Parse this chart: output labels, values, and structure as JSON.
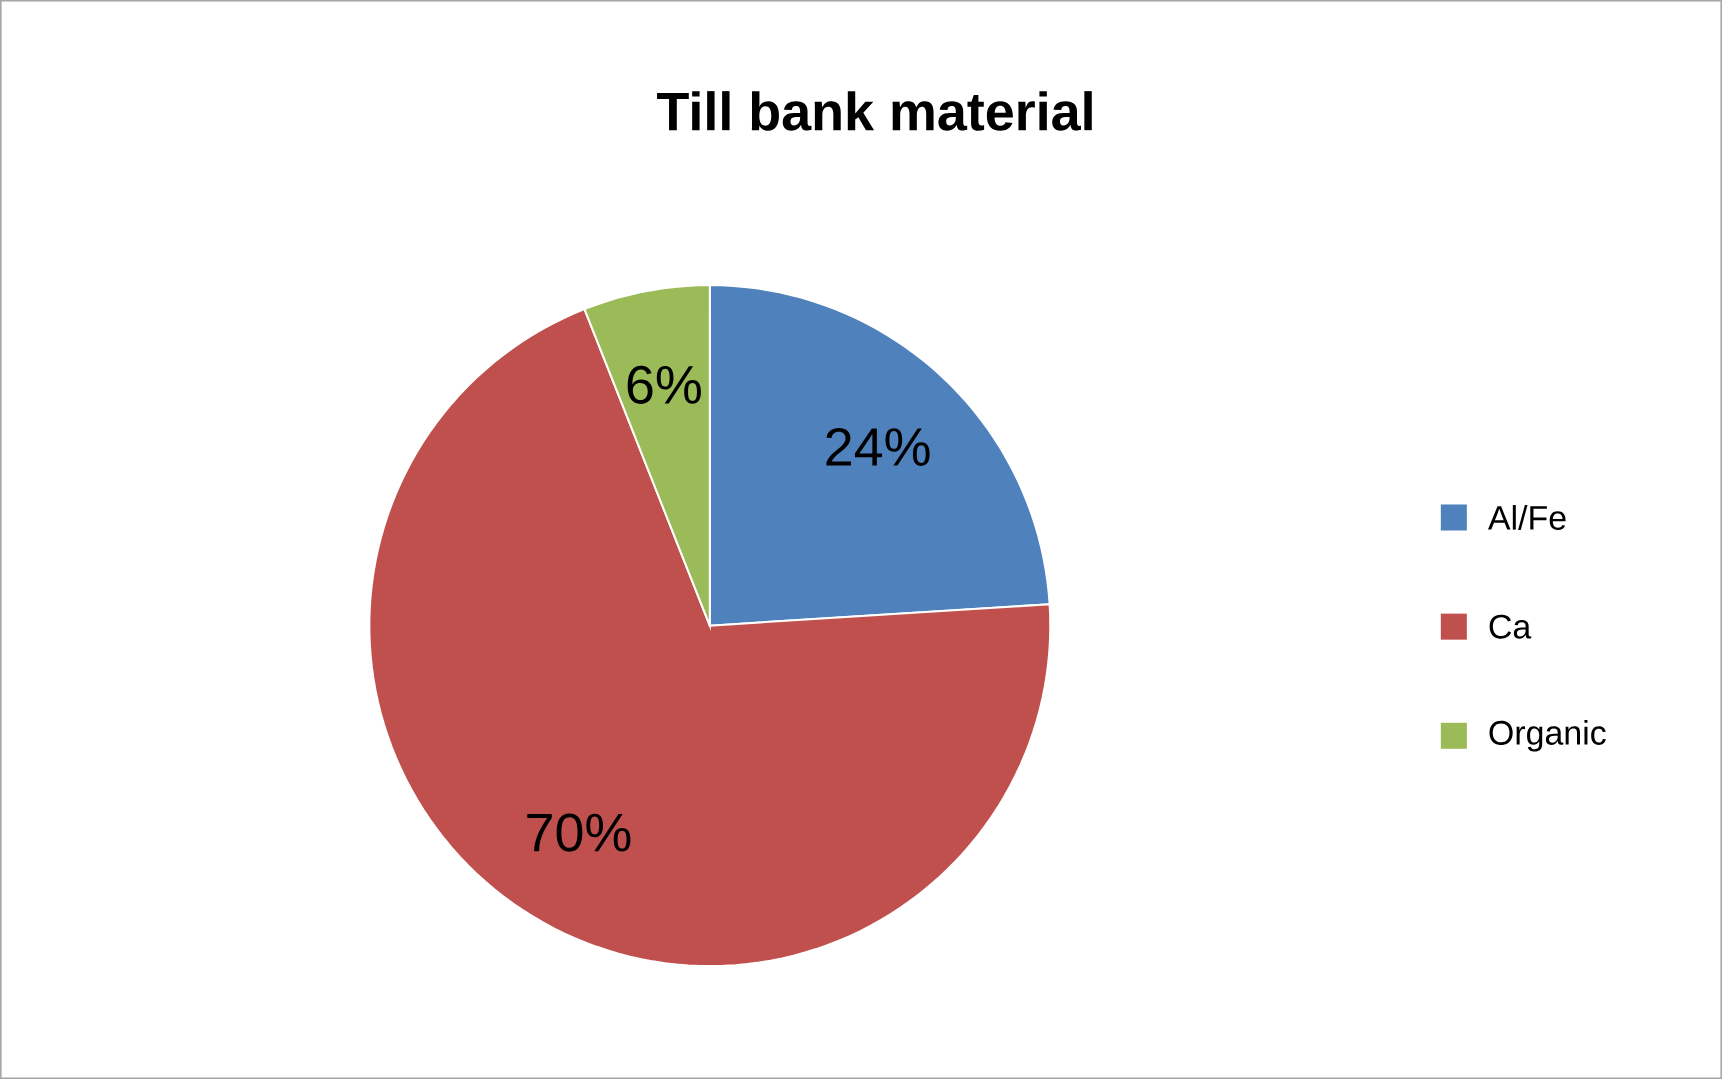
{
  "chart_data": {
    "type": "pie",
    "title": "Till bank material",
    "categories": [
      "Al/Fe",
      "Ca",
      "Organic"
    ],
    "values": [
      24,
      70,
      6
    ],
    "value_labels": [
      "24%",
      "70%",
      "6%"
    ],
    "colors": [
      "#4f81bd",
      "#c0504d",
      "#9bbb59"
    ],
    "legend": "right"
  }
}
